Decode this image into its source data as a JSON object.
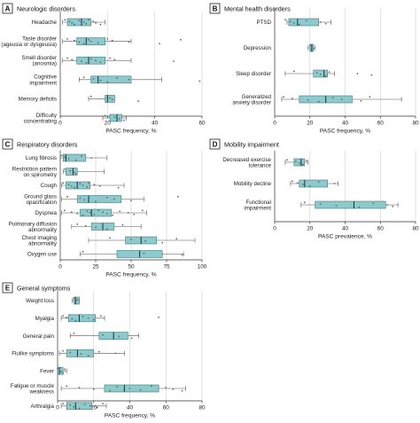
{
  "colors": {
    "box_fill": "#8ec9cc",
    "box_stroke": "#3d7a80",
    "whisker": "#555555",
    "median": "#1d3f45",
    "point": "#666666",
    "grid": "#cfcfcf",
    "panel_tag_bg": "#ffffff"
  },
  "chart_data": [
    {
      "panel": "A",
      "type": "box",
      "title": "Neurologic disorders",
      "xlabel": "PASC frequency, %",
      "xlim": [
        0,
        60
      ],
      "ticks": [
        "0",
        "20",
        "40",
        "60"
      ],
      "grid": true,
      "categories": [
        {
          "label": [
            "Headache"
          ],
          "min": 1,
          "q1": 3,
          "median": 9,
          "q3": 13,
          "max": 19,
          "points": [
            2,
            4,
            5,
            6,
            8,
            10,
            11,
            12,
            14,
            15,
            17
          ]
        },
        {
          "label": [
            "Taste disorder",
            "(ageusia or dysgeusia)"
          ],
          "min": 1,
          "q1": 7,
          "median": 11,
          "q3": 19,
          "max": 30,
          "points": [
            3,
            6,
            8,
            10,
            12,
            13,
            16,
            20,
            22,
            29,
            42,
            51
          ]
        },
        {
          "label": [
            "Smell disorder",
            "(anosmia)"
          ],
          "min": 1,
          "q1": 7,
          "median": 12,
          "q3": 19,
          "max": 30,
          "points": [
            3,
            5,
            9,
            11,
            13,
            15,
            17,
            21,
            23,
            48
          ]
        },
        {
          "label": [
            "Cognitive",
            "impairment"
          ],
          "min": 8,
          "q1": 13,
          "median": 16,
          "q3": 30,
          "max": 43,
          "points": [
            10,
            14,
            17,
            20,
            24,
            29,
            59
          ]
        },
        {
          "label": [
            "Memory deficits"
          ],
          "min": 12,
          "q1": 19,
          "median": 20,
          "q3": 23,
          "max": 23,
          "points": [
            13,
            21,
            22,
            33
          ]
        },
        {
          "label": [
            "Difficulty",
            "concentrating"
          ],
          "min": 18,
          "q1": 21,
          "median": 24,
          "q3": 26,
          "max": 28,
          "points": [
            19,
            23,
            25,
            27
          ]
        }
      ]
    },
    {
      "panel": "B",
      "type": "box",
      "title": "Mental health disorders",
      "xlabel": "PASC frequency, %",
      "xlim": [
        0,
        80
      ],
      "ticks": [
        "0",
        "20",
        "40",
        "60",
        "80"
      ],
      "grid": true,
      "categories": [
        {
          "label": [
            "PTSD"
          ],
          "min": 7,
          "q1": 8,
          "median": 13,
          "q3": 25,
          "max": 32,
          "points": [
            6,
            9,
            11,
            14,
            18,
            26,
            29
          ]
        },
        {
          "label": [
            "Depression"
          ],
          "min": 19,
          "q1": 20,
          "median": 21,
          "q3": 22,
          "max": 23,
          "points": [
            20,
            21,
            22
          ]
        },
        {
          "label": [
            "Sleep disorder"
          ],
          "min": 6,
          "q1": 22,
          "median": 28,
          "q3": 30,
          "max": 34,
          "points": [
            11,
            24,
            26,
            29,
            31,
            47,
            55
          ]
        },
        {
          "label": [
            "Generalized",
            "anxiety disorder"
          ],
          "min": 4,
          "q1": 14,
          "median": 29,
          "q3": 44,
          "max": 72,
          "points": [
            5,
            10,
            19,
            25,
            33,
            38,
            49,
            54
          ]
        }
      ]
    },
    {
      "panel": "C",
      "type": "box",
      "title": "Respiratory disorders",
      "xlabel": "PASC frequency, %",
      "xlim": [
        0,
        100
      ],
      "ticks": [
        "0",
        "25",
        "50",
        "75",
        "100"
      ],
      "grid": true,
      "categories": [
        {
          "label": [
            "Lung fibrosis"
          ],
          "min": 0,
          "q1": 2,
          "median": 4,
          "q3": 18,
          "max": 33,
          "points": [
            1,
            3,
            6,
            11,
            15,
            22
          ]
        },
        {
          "label": [
            "Restriction pattern",
            "on spirometry"
          ],
          "min": 2,
          "q1": 4,
          "median": 9,
          "q3": 12,
          "max": 31,
          "points": [
            3,
            7,
            10,
            11
          ]
        },
        {
          "label": [
            "Cough"
          ],
          "min": 1,
          "q1": 4,
          "median": 12,
          "q3": 21,
          "max": 45,
          "points": [
            2,
            6,
            8,
            10,
            14,
            16,
            19,
            20,
            24,
            28,
            41
          ]
        },
        {
          "label": [
            "Ground glass",
            "opacification"
          ],
          "min": 1,
          "q1": 12,
          "median": 20,
          "q3": 43,
          "max": 59,
          "points": [
            5,
            14,
            17,
            25,
            33,
            38,
            50,
            83
          ]
        },
        {
          "label": [
            "Dyspnea"
          ],
          "min": 1,
          "q1": 14,
          "median": 22,
          "q3": 36,
          "max": 61,
          "points": [
            3,
            8,
            12,
            16,
            19,
            21,
            24,
            27,
            30,
            33,
            37,
            42,
            48,
            52,
            58
          ]
        },
        {
          "label": [
            "Pulmonary diffusion",
            "abnormality"
          ],
          "min": 8,
          "q1": 22,
          "median": 30,
          "q3": 38,
          "max": 57,
          "points": [
            12,
            18,
            25,
            33,
            44
          ]
        },
        {
          "label": [
            "Chest imaging",
            "abnormality"
          ],
          "min": 20,
          "q1": 46,
          "median": 57,
          "q3": 68,
          "max": 95,
          "points": [
            35,
            50,
            60,
            72,
            82
          ]
        },
        {
          "label": [
            "Oxygen use"
          ],
          "min": 14,
          "q1": 40,
          "median": 56,
          "q3": 72,
          "max": 87,
          "points": [
            16,
            59,
            86
          ]
        }
      ]
    },
    {
      "panel": "D",
      "type": "box",
      "title": "Mobility impairment",
      "xlabel": "PASC prevalence, %",
      "xlim": [
        0,
        80
      ],
      "ticks": [
        "0",
        "20",
        "40",
        "60",
        "80"
      ],
      "grid": true,
      "categories": [
        {
          "label": [
            "Decreased exercise",
            "tolerance"
          ],
          "min": 6,
          "q1": 11,
          "median": 15,
          "q3": 17,
          "max": 19,
          "points": [
            7,
            12,
            14,
            16,
            18
          ]
        },
        {
          "label": [
            "Mobility decline"
          ],
          "min": 9,
          "q1": 14,
          "median": 17,
          "q3": 30,
          "max": 36,
          "points": [
            10,
            13,
            16,
            20,
            25,
            34
          ]
        },
        {
          "label": [
            "Functional",
            "impairment"
          ],
          "min": 15,
          "q1": 23,
          "median": 45,
          "q3": 63,
          "max": 70,
          "points": [
            17,
            26,
            35,
            48,
            56,
            64,
            67
          ]
        }
      ]
    },
    {
      "panel": "E",
      "type": "box",
      "title": "General symptoms",
      "xlabel": "PASC frequency, %",
      "xlim": [
        0,
        80
      ],
      "ticks": [
        "0",
        "20",
        "40",
        "60",
        "80"
      ],
      "grid": true,
      "categories": [
        {
          "label": [
            "Weight loss"
          ],
          "min": 8,
          "q1": 9,
          "median": 10,
          "q3": 12,
          "max": 12,
          "points": [
            9,
            11
          ]
        },
        {
          "label": [
            "Myalgia"
          ],
          "min": 2,
          "q1": 6,
          "median": 12,
          "q3": 21,
          "max": 26,
          "points": [
            3,
            5,
            8,
            10,
            14,
            17,
            20,
            24,
            56
          ]
        },
        {
          "label": [
            "General pain"
          ],
          "min": 7,
          "q1": 23,
          "median": 31,
          "q3": 39,
          "max": 45,
          "points": [
            9,
            25,
            34,
            41
          ]
        },
        {
          "label": [
            "Flulike symptoms"
          ],
          "min": 1,
          "q1": 5,
          "median": 11,
          "q3": 20,
          "max": 37,
          "points": [
            3,
            7,
            13,
            17,
            23,
            32
          ]
        },
        {
          "label": [
            "Fever"
          ],
          "min": 0,
          "q1": 0,
          "median": 1,
          "q3": 3,
          "max": 5,
          "points": [
            0,
            1,
            2,
            3,
            4
          ]
        },
        {
          "label": [
            "Fatigue or muscle",
            "weakness"
          ],
          "min": 2,
          "q1": 26,
          "median": 37,
          "q3": 56,
          "max": 71,
          "points": [
            5,
            12,
            20,
            29,
            33,
            40,
            46,
            52,
            60,
            64,
            69
          ]
        },
        {
          "label": [
            "Arthralgia"
          ],
          "min": 2,
          "q1": 5,
          "median": 10,
          "q3": 19,
          "max": 27,
          "points": [
            3,
            7,
            9,
            12,
            15,
            18,
            22,
            25
          ]
        }
      ]
    }
  ]
}
